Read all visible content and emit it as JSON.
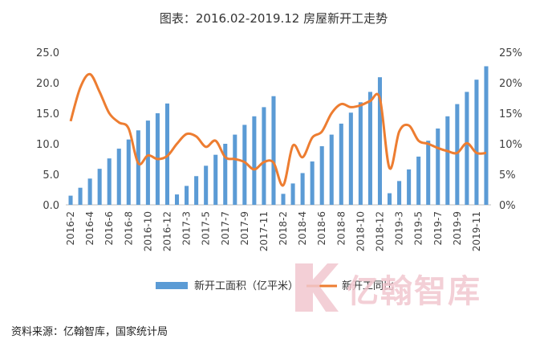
{
  "chart_data": {
    "type": "bar+line",
    "title": "图表：2016.02-2019.12 房屋新开工走势",
    "categories": [
      "2016-2",
      "2016-3",
      "2016-4",
      "2016-5",
      "2016-6",
      "2016-7",
      "2016-8",
      "2016-9",
      "2016-10",
      "2016-11",
      "2016-12",
      "2017-2",
      "2017-3",
      "2017-4",
      "2017-5",
      "2017-6",
      "2017-7",
      "2017-8",
      "2017-9",
      "2017-10",
      "2017-11",
      "2017-12",
      "2018-2",
      "2018-3",
      "2018-4",
      "2018-5",
      "2018-6",
      "2018-7",
      "2018-8",
      "2018-9",
      "2018-10",
      "2018-11",
      "2018-12",
      "2019-2",
      "2019-3",
      "2019-4",
      "2019-5",
      "2019-6",
      "2019-7",
      "2019-8",
      "2019-9",
      "2019-10",
      "2019-11",
      "2019-12"
    ],
    "tick_labels": [
      "2016-2",
      "2016-4",
      "2016-6",
      "2016-8",
      "2016-10",
      "2016-12",
      "2017-3",
      "2017-5",
      "2017-7",
      "2017-9",
      "2017-11",
      "2018-2",
      "2018-4",
      "2018-6",
      "2018-8",
      "2018-10",
      "2018-12",
      "2019-3",
      "2019-5",
      "2019-7",
      "2019-9",
      "2019-11"
    ],
    "series": [
      {
        "name": "新开工面积（亿平米）",
        "type": "bar",
        "axis": "left",
        "color": "#5b9bd5",
        "values": [
          1.5,
          2.8,
          4.3,
          5.9,
          7.6,
          9.2,
          10.7,
          12.2,
          13.8,
          15.0,
          16.6,
          1.7,
          3.1,
          4.7,
          6.4,
          8.2,
          10.0,
          11.5,
          13.1,
          14.5,
          16.0,
          17.8,
          1.8,
          3.5,
          5.2,
          7.1,
          9.6,
          11.5,
          13.3,
          15.1,
          16.8,
          18.5,
          20.9,
          1.9,
          3.9,
          5.8,
          7.9,
          10.5,
          12.5,
          14.5,
          16.5,
          18.5,
          20.5,
          22.7
        ]
      },
      {
        "name": "新开工同比",
        "type": "line",
        "axis": "right",
        "color": "#ed7d31",
        "values": [
          13.7,
          19.2,
          21.4,
          18.5,
          15.0,
          13.5,
          12.5,
          6.8,
          8.1,
          7.5,
          8.0,
          10.0,
          11.6,
          11.2,
          9.5,
          10.5,
          7.8,
          7.5,
          7.0,
          5.8,
          7.0,
          6.9,
          3.2,
          9.7,
          7.8,
          11.0,
          12.0,
          15.0,
          16.5,
          16.0,
          16.3,
          17.0,
          17.4,
          6.0,
          12.0,
          13.0,
          10.5,
          10.0,
          9.3,
          8.8,
          8.5,
          10.1,
          8.5,
          8.5
        ]
      }
    ],
    "y_left": {
      "min": 0,
      "max": 25,
      "ticks": [
        "0.0",
        "5.0",
        "10.0",
        "15.0",
        "20.0",
        "25.0"
      ]
    },
    "y_right": {
      "min": 0,
      "max": 25,
      "ticks": [
        "0%",
        "5%",
        "10%",
        "15%",
        "20%",
        "25%"
      ]
    },
    "legend": {
      "placement": "bottom"
    },
    "grid": false
  },
  "source_text": "资料来源：亿翰智库，国家统计局",
  "watermark_text": "亿翰智库"
}
